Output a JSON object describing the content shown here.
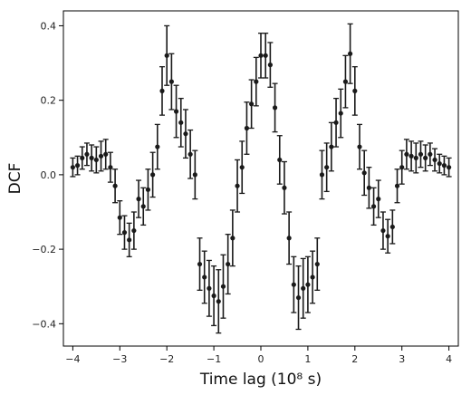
{
  "chart_data": {
    "type": "scatter",
    "xlabel": "Time lag (10⁸ s)",
    "ylabel": "DCF",
    "xlim": [
      -4.2,
      4.2
    ],
    "ylim": [
      -0.46,
      0.44
    ],
    "xticks": [
      -4,
      -3,
      -2,
      -1,
      0,
      1,
      2,
      3,
      4
    ],
    "yticks": [
      -0.4,
      -0.2,
      0.0,
      0.2,
      0.4
    ],
    "ytick_labels": [
      "−0.4",
      "−0.2",
      "0.0",
      "0.2",
      "0.4"
    ],
    "xtick_labels": [
      "−4",
      "−3",
      "−2",
      "−1",
      "0",
      "1",
      "2",
      "3",
      "4"
    ],
    "grid": false,
    "marker_color": "#1a1a1a",
    "series": [
      {
        "x": [
          -4.0,
          -3.9,
          -3.8,
          -3.7,
          -3.6,
          -3.5,
          -3.4,
          -3.3,
          -3.2,
          -3.1,
          -3.0,
          -2.9,
          -2.8,
          -2.7,
          -2.6,
          -2.5,
          -2.4,
          -2.3,
          -2.2,
          -2.1,
          -2.0,
          -1.9,
          -1.8,
          -1.7,
          -1.6,
          -1.5,
          -1.4,
          -1.3,
          -1.2,
          -1.1,
          -1.0,
          -0.9,
          -0.8,
          -0.7,
          -0.6,
          -0.5,
          -0.4,
          -0.3,
          -0.2,
          -0.1,
          0.0,
          0.1,
          0.2,
          0.3,
          0.4,
          0.5,
          0.6,
          0.7,
          0.8,
          0.9,
          1.0,
          1.1,
          1.2,
          1.3,
          1.4,
          1.5,
          1.6,
          1.7,
          1.8,
          1.9,
          2.0,
          2.1,
          2.2,
          2.3,
          2.4,
          2.5,
          2.6,
          2.7,
          2.8,
          2.9,
          3.0,
          3.1,
          3.2,
          3.3,
          3.4,
          3.5,
          3.6,
          3.7,
          3.8,
          3.9,
          4.0
        ],
        "y": [
          0.02,
          0.025,
          0.045,
          0.055,
          0.045,
          0.04,
          0.05,
          0.055,
          0.02,
          -0.03,
          -0.115,
          -0.155,
          -0.175,
          -0.15,
          -0.065,
          -0.085,
          -0.04,
          0.0,
          0.075,
          0.225,
          0.32,
          0.25,
          0.17,
          0.14,
          0.11,
          0.055,
          0.0,
          -0.24,
          -0.275,
          -0.305,
          -0.325,
          -0.34,
          -0.3,
          -0.24,
          -0.17,
          -0.03,
          0.02,
          0.125,
          0.19,
          0.25,
          0.32,
          0.32,
          0.295,
          0.18,
          0.04,
          -0.035,
          -0.17,
          -0.295,
          -0.33,
          -0.305,
          -0.295,
          -0.275,
          -0.24,
          0.0,
          0.02,
          0.075,
          0.14,
          0.165,
          0.25,
          0.325,
          0.225,
          0.075,
          0.005,
          -0.035,
          -0.085,
          -0.065,
          -0.15,
          -0.165,
          -0.14,
          -0.03,
          0.02,
          0.055,
          0.05,
          0.045,
          0.055,
          0.045,
          0.055,
          0.04,
          0.03,
          0.025,
          0.02
        ],
        "err": [
          0.025,
          0.025,
          0.03,
          0.03,
          0.035,
          0.035,
          0.04,
          0.04,
          0.04,
          0.045,
          0.045,
          0.045,
          0.045,
          0.05,
          0.05,
          0.05,
          0.055,
          0.06,
          0.06,
          0.065,
          0.08,
          0.075,
          0.07,
          0.065,
          0.065,
          0.065,
          0.065,
          0.07,
          0.07,
          0.075,
          0.08,
          0.085,
          0.085,
          0.08,
          0.075,
          0.07,
          0.07,
          0.07,
          0.065,
          0.065,
          0.06,
          0.06,
          0.06,
          0.065,
          0.065,
          0.07,
          0.07,
          0.075,
          0.085,
          0.08,
          0.075,
          0.07,
          0.07,
          0.065,
          0.065,
          0.065,
          0.065,
          0.065,
          0.07,
          0.08,
          0.065,
          0.06,
          0.06,
          0.055,
          0.05,
          0.05,
          0.05,
          0.045,
          0.045,
          0.045,
          0.045,
          0.04,
          0.04,
          0.04,
          0.035,
          0.035,
          0.03,
          0.03,
          0.025,
          0.025,
          0.025
        ]
      }
    ]
  }
}
